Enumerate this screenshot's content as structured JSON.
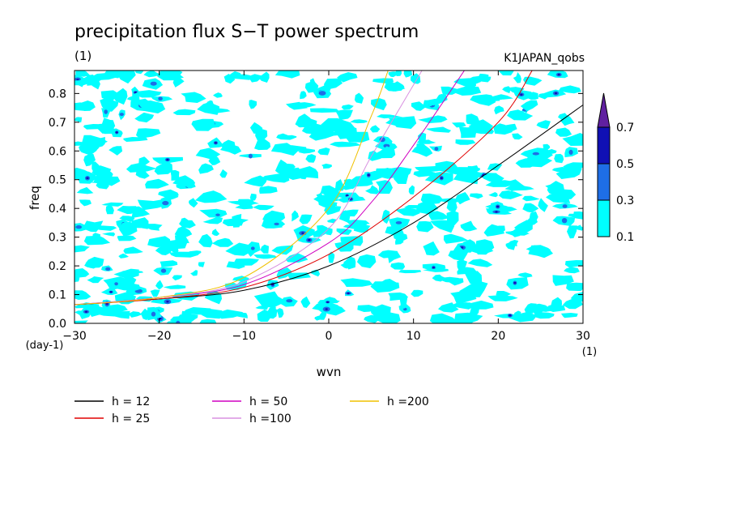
{
  "chart_data": {
    "type": "heatmap",
    "title": "precipitation flux S−T power spectrum",
    "units_label": "(1)",
    "dataset": "K1JAPAN_qobs",
    "xlabel": "wvn",
    "x_units": "(1)",
    "ylabel": "freq",
    "y_units": "(day-1)",
    "xlim": [
      -30,
      30
    ],
    "ylim": [
      0,
      0.88
    ],
    "xticks": [
      "−30",
      "−20",
      "−10",
      "0",
      "10",
      "20",
      "30"
    ],
    "xtick_values": [
      -30,
      -20,
      -10,
      0,
      10,
      20,
      30
    ],
    "yticks": [
      "0.0",
      "0.1",
      "0.2",
      "0.3",
      "0.4",
      "0.5",
      "0.6",
      "0.7",
      "0.8"
    ],
    "ytick_values": [
      0,
      0.1,
      0.2,
      0.3,
      0.4,
      0.5,
      0.6,
      0.7,
      0.8
    ],
    "colorbar": {
      "levels": [
        "0.1",
        "0.3",
        "0.5",
        "0.7"
      ],
      "colors": [
        "#00ffff",
        "#1e6ee6",
        "#1010b4",
        "#6020a0"
      ]
    },
    "dispersion_curves": {
      "type": "line",
      "note": "equivalent depth lines",
      "series": [
        {
          "name": "h = 12",
          "label": "h = 12",
          "color": "#000000",
          "h": 12,
          "x": [
            -30,
            -20,
            -10,
            0,
            10,
            20,
            30
          ],
          "y": [
            0.065,
            0.085,
            0.115,
            0.2,
            0.35,
            0.55,
            0.76
          ]
        },
        {
          "name": "h = 25",
          "label": "h = 25",
          "color": "#e00000",
          "h": 25,
          "x": [
            -30,
            -20,
            -10,
            0,
            10,
            20,
            24
          ],
          "y": [
            0.065,
            0.085,
            0.125,
            0.24,
            0.44,
            0.7,
            0.88
          ]
        },
        {
          "name": "h = 50",
          "label": "h = 50",
          "color": "#d000c0",
          "h": 50,
          "x": [
            -30,
            -20,
            -10,
            0,
            5,
            10,
            16
          ],
          "y": [
            0.065,
            0.09,
            0.135,
            0.28,
            0.42,
            0.62,
            0.88
          ]
        },
        {
          "name": "h = 100",
          "label": "h =100",
          "color": "#d890e0",
          "h": 100,
          "x": [
            -30,
            -20,
            -10,
            0,
            5,
            10,
            11
          ],
          "y": [
            0.065,
            0.09,
            0.145,
            0.33,
            0.58,
            0.83,
            0.88
          ]
        },
        {
          "name": "h = 200",
          "label": "h =200",
          "color": "#f0c000",
          "h": 200,
          "x": [
            -30,
            -20,
            -10,
            0,
            5,
            7
          ],
          "y": [
            0.065,
            0.09,
            0.16,
            0.4,
            0.72,
            0.88
          ]
        }
      ]
    },
    "legend": {
      "placement": "bottom",
      "items": [
        "h = 12",
        "h = 25",
        "h = 50",
        "h =100",
        "h =200"
      ]
    }
  }
}
